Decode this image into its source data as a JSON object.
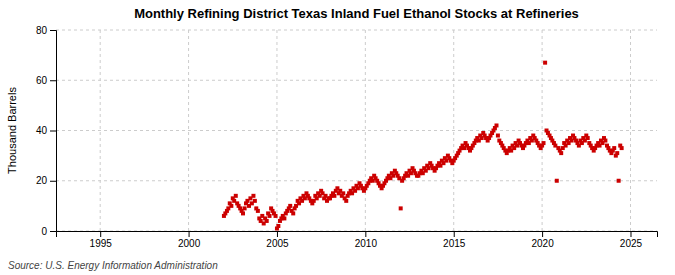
{
  "chart_data": {
    "type": "scatter",
    "title": "Monthly Refining District Texas Inland Fuel Ethanol Stocks at Refineries",
    "ylabel": "Thousand Barrels",
    "source": "Source: U.S. Energy Information Administration",
    "color": "#CC0000",
    "marker": "square",
    "grid": true,
    "xlim": [
      1992.5,
      2026.5
    ],
    "ylim": [
      0,
      80
    ],
    "xticks": [
      1995,
      2000,
      2005,
      2010,
      2015,
      2020,
      2025
    ],
    "yticks": [
      0,
      20,
      40,
      60,
      80
    ],
    "x": [
      2002.0,
      2002.08,
      2002.17,
      2002.25,
      2002.33,
      2002.42,
      2002.5,
      2002.58,
      2002.67,
      2002.75,
      2002.83,
      2002.92,
      2003.0,
      2003.08,
      2003.17,
      2003.25,
      2003.33,
      2003.42,
      2003.5,
      2003.58,
      2003.67,
      2003.75,
      2003.83,
      2003.92,
      2004.0,
      2004.08,
      2004.17,
      2004.25,
      2004.33,
      2004.42,
      2004.5,
      2004.58,
      2004.67,
      2004.75,
      2004.83,
      2004.92,
      2005.0,
      2005.08,
      2005.17,
      2005.25,
      2005.33,
      2005.42,
      2005.5,
      2005.58,
      2005.67,
      2005.75,
      2005.83,
      2005.92,
      2006.0,
      2006.08,
      2006.17,
      2006.25,
      2006.33,
      2006.42,
      2006.5,
      2006.58,
      2006.67,
      2006.75,
      2006.83,
      2006.92,
      2007.0,
      2007.08,
      2007.17,
      2007.25,
      2007.33,
      2007.42,
      2007.5,
      2007.58,
      2007.67,
      2007.75,
      2007.83,
      2007.92,
      2008.0,
      2008.08,
      2008.17,
      2008.25,
      2008.33,
      2008.42,
      2008.5,
      2008.58,
      2008.67,
      2008.75,
      2008.83,
      2008.92,
      2009.0,
      2009.08,
      2009.17,
      2009.25,
      2009.33,
      2009.42,
      2009.5,
      2009.58,
      2009.67,
      2009.75,
      2009.83,
      2009.92,
      2010.0,
      2010.08,
      2010.17,
      2010.25,
      2010.33,
      2010.42,
      2010.5,
      2010.58,
      2010.67,
      2010.75,
      2010.83,
      2010.92,
      2011.0,
      2011.08,
      2011.17,
      2011.25,
      2011.33,
      2011.42,
      2011.5,
      2011.58,
      2011.67,
      2011.75,
      2011.83,
      2011.92,
      2012.0,
      2012.08,
      2012.17,
      2012.25,
      2012.33,
      2012.42,
      2012.5,
      2012.58,
      2012.67,
      2012.75,
      2012.83,
      2012.92,
      2013.0,
      2013.08,
      2013.17,
      2013.25,
      2013.33,
      2013.42,
      2013.5,
      2013.58,
      2013.67,
      2013.75,
      2013.83,
      2013.92,
      2014.0,
      2014.08,
      2014.17,
      2014.25,
      2014.33,
      2014.42,
      2014.5,
      2014.58,
      2014.67,
      2014.75,
      2014.83,
      2014.92,
      2015.0,
      2015.08,
      2015.17,
      2015.25,
      2015.33,
      2015.42,
      2015.5,
      2015.58,
      2015.67,
      2015.75,
      2015.83,
      2015.92,
      2016.0,
      2016.08,
      2016.17,
      2016.25,
      2016.33,
      2016.42,
      2016.5,
      2016.58,
      2016.67,
      2016.75,
      2016.83,
      2016.92,
      2017.0,
      2017.08,
      2017.17,
      2017.25,
      2017.33,
      2017.42,
      2017.5,
      2017.58,
      2017.67,
      2017.75,
      2017.83,
      2017.92,
      2018.0,
      2018.08,
      2018.17,
      2018.25,
      2018.33,
      2018.42,
      2018.5,
      2018.58,
      2018.67,
      2018.75,
      2018.83,
      2018.92,
      2019.0,
      2019.08,
      2019.17,
      2019.25,
      2019.33,
      2019.42,
      2019.5,
      2019.58,
      2019.67,
      2019.75,
      2019.83,
      2019.92,
      2020.0,
      2020.08,
      2020.17,
      2020.25,
      2020.33,
      2020.42,
      2020.5,
      2020.58,
      2020.67,
      2020.75,
      2020.83,
      2020.92,
      2021.0,
      2021.08,
      2021.17,
      2021.25,
      2021.33,
      2021.42,
      2021.5,
      2021.58,
      2021.67,
      2021.75,
      2021.83,
      2021.92,
      2022.0,
      2022.08,
      2022.17,
      2022.25,
      2022.33,
      2022.42,
      2022.5,
      2022.58,
      2022.67,
      2022.75,
      2022.83,
      2022.92,
      2023.0,
      2023.08,
      2023.17,
      2023.25,
      2023.33,
      2023.42,
      2023.5,
      2023.58,
      2023.67,
      2023.75,
      2023.83,
      2023.92,
      2024.0,
      2024.08,
      2024.17,
      2024.25,
      2024.33,
      2024.42,
      2024.5
    ],
    "values": [
      6,
      7,
      8,
      9,
      11,
      10,
      13,
      12,
      14,
      11,
      10,
      9,
      8,
      7,
      9,
      11,
      12,
      10,
      13,
      11,
      14,
      12,
      9,
      8,
      5,
      4,
      6,
      3,
      5,
      4,
      7,
      6,
      9,
      8,
      7,
      6,
      1,
      2,
      4,
      5,
      6,
      5,
      7,
      8,
      9,
      10,
      8,
      7,
      9,
      10,
      12,
      11,
      13,
      12,
      14,
      13,
      15,
      14,
      13,
      12,
      11,
      12,
      14,
      13,
      15,
      14,
      16,
      15,
      13,
      14,
      12,
      13,
      13,
      14,
      15,
      14,
      16,
      17,
      15,
      16,
      14,
      15,
      13,
      12,
      14,
      15,
      16,
      15,
      17,
      16,
      18,
      17,
      19,
      18,
      17,
      16,
      17,
      18,
      19,
      20,
      21,
      20,
      22,
      21,
      20,
      19,
      18,
      17,
      18,
      19,
      20,
      21,
      22,
      21,
      23,
      22,
      24,
      23,
      22,
      21,
      9,
      20,
      21,
      22,
      23,
      22,
      24,
      23,
      25,
      24,
      23,
      22,
      22,
      23,
      24,
      23,
      25,
      24,
      26,
      25,
      27,
      26,
      25,
      24,
      25,
      26,
      27,
      26,
      28,
      27,
      29,
      28,
      30,
      29,
      28,
      27,
      28,
      29,
      30,
      31,
      32,
      33,
      34,
      33,
      35,
      34,
      33,
      32,
      33,
      34,
      35,
      36,
      37,
      36,
      38,
      37,
      39,
      38,
      37,
      36,
      37,
      38,
      39,
      40,
      41,
      42,
      38,
      36,
      35,
      34,
      33,
      32,
      31,
      32,
      33,
      32,
      34,
      33,
      35,
      34,
      36,
      35,
      34,
      33,
      34,
      35,
      36,
      35,
      37,
      36,
      38,
      37,
      36,
      35,
      34,
      33,
      34,
      35,
      67,
      40,
      39,
      38,
      37,
      36,
      35,
      34,
      20,
      33,
      32,
      31,
      33,
      35,
      34,
      36,
      35,
      37,
      36,
      38,
      37,
      36,
      35,
      34,
      36,
      35,
      37,
      36,
      38,
      37,
      35,
      34,
      33,
      32,
      33,
      34,
      35,
      34,
      36,
      35,
      37,
      36,
      34,
      33,
      32,
      31,
      32,
      33,
      30,
      31,
      20,
      34,
      33
    ]
  }
}
